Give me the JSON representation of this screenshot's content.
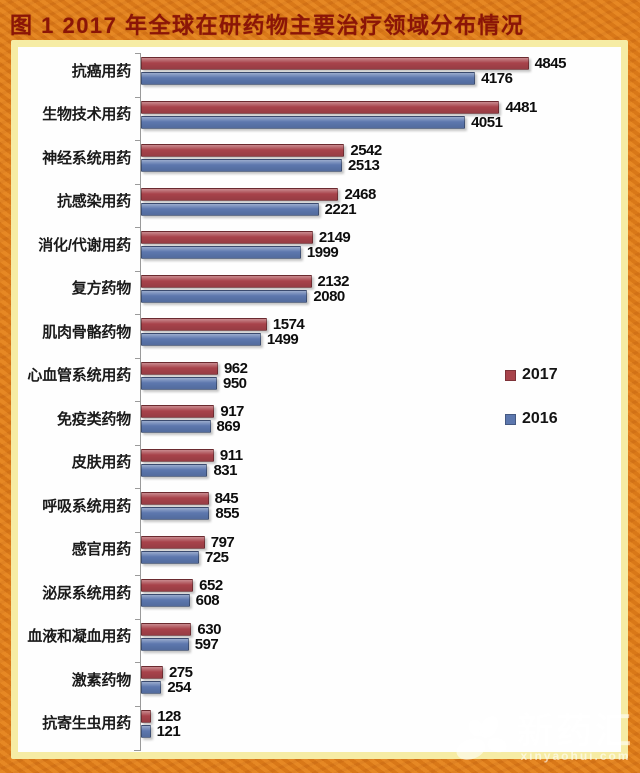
{
  "title": "图 1  2017 年全球在研药物主要治疗领域分布情况",
  "chart_data": {
    "type": "bar",
    "orientation": "horizontal",
    "title": "图 1  2017 年全球在研药物主要治疗领域分布情况",
    "categories": [
      "抗癌用药",
      "生物技术用药",
      "神经系统用药",
      "抗感染用药",
      "消化/代谢用药",
      "复方药物",
      "肌肉骨骼药物",
      "心血管系统用药",
      "免疫类药物",
      "皮肤用药",
      "呼吸系统用药",
      "感官用药",
      "泌尿系统用药",
      "血液和凝血用药",
      "激素药物",
      "抗寄生虫用药"
    ],
    "series": [
      {
        "name": "2017",
        "color": "#A8434B",
        "values": [
          4845,
          4481,
          2542,
          2468,
          2149,
          2132,
          1574,
          962,
          917,
          911,
          845,
          797,
          652,
          630,
          275,
          128
        ]
      },
      {
        "name": "2016",
        "color": "#5C77AE",
        "values": [
          4176,
          4051,
          2513,
          2221,
          1999,
          2080,
          1499,
          950,
          869,
          831,
          855,
          725,
          608,
          597,
          254,
          121
        ]
      }
    ],
    "xlim": [
      0,
      6000
    ],
    "grid": false,
    "value_labels": true,
    "legend_position": "right-middle"
  },
  "watermark": {
    "name": "新药汇",
    "domain": "xinyaohui.com"
  },
  "colors": {
    "frame": "#DE7E1A",
    "panel_border": "#F6ECA4",
    "title_text": "#8B1507",
    "chart_background": "#FEFEFE",
    "value_text": "#0D0D0D",
    "series_2017": "#A8434B",
    "series_2016": "#5C77AE"
  }
}
